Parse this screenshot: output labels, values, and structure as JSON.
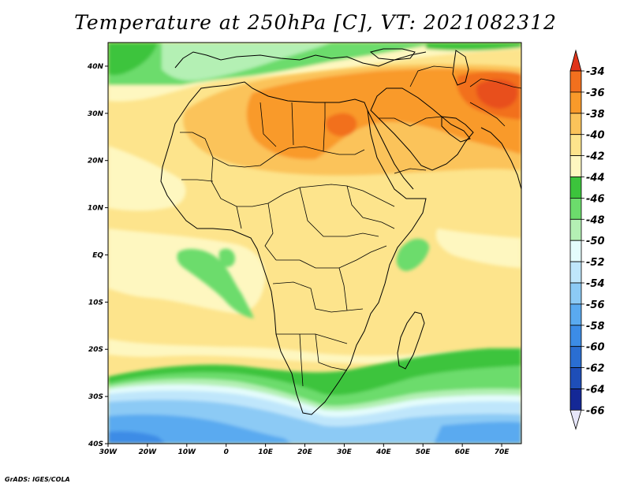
{
  "title": "Temperature at 250hPa [C], VT: 2021082312",
  "credit": "GrADS: IGES/COLA",
  "map": {
    "lon_range": [
      -30,
      75
    ],
    "lat_range": [
      -40,
      45
    ],
    "lon_ticks": [
      {
        "value": -30,
        "label": "30W"
      },
      {
        "value": -20,
        "label": "20W"
      },
      {
        "value": -10,
        "label": "10W"
      },
      {
        "value": 0,
        "label": "0"
      },
      {
        "value": 10,
        "label": "10E"
      },
      {
        "value": 20,
        "label": "20E"
      },
      {
        "value": 30,
        "label": "30E"
      },
      {
        "value": 40,
        "label": "40E"
      },
      {
        "value": 50,
        "label": "50E"
      },
      {
        "value": 60,
        "label": "60E"
      },
      {
        "value": 70,
        "label": "70E"
      }
    ],
    "lat_ticks": [
      {
        "value": 40,
        "label": "40N"
      },
      {
        "value": 30,
        "label": "30N"
      },
      {
        "value": 20,
        "label": "20N"
      },
      {
        "value": 10,
        "label": "10N"
      },
      {
        "value": 0,
        "label": "EQ"
      },
      {
        "value": -10,
        "label": "10S"
      },
      {
        "value": -20,
        "label": "20S"
      },
      {
        "value": -30,
        "label": "30S"
      },
      {
        "value": -40,
        "label": "40S"
      }
    ]
  },
  "colorbar": {
    "levels": [
      {
        "label": "-34",
        "color": "#e8501e"
      },
      {
        "label": "-36",
        "color": "#f2701e"
      },
      {
        "label": "-38",
        "color": "#f99a2a"
      },
      {
        "label": "-40",
        "color": "#fbc35a"
      },
      {
        "label": "-42",
        "color": "#fde48c"
      },
      {
        "label": "-44",
        "color": "#fef7c0"
      },
      {
        "label": "-46",
        "color": "#3cc43c"
      },
      {
        "label": "-48",
        "color": "#6cdc6c"
      },
      {
        "label": "-50",
        "color": "#b4f0b4"
      },
      {
        "label": "-52",
        "color": "#e4fcfc"
      },
      {
        "label": "-54",
        "color": "#bfe6fb"
      },
      {
        "label": "-56",
        "color": "#8ccaf5"
      },
      {
        "label": "-58",
        "color": "#5aaaf0"
      },
      {
        "label": "-60",
        "color": "#3c8ce6"
      },
      {
        "label": "-62",
        "color": "#2a6ed2"
      },
      {
        "label": "-64",
        "color": "#1e4eb8"
      },
      {
        "label": "-66",
        "color": "#142896"
      }
    ],
    "top_arrow_color": "#e0341a",
    "bottom_arrow_color": "#e6e6fa"
  }
}
